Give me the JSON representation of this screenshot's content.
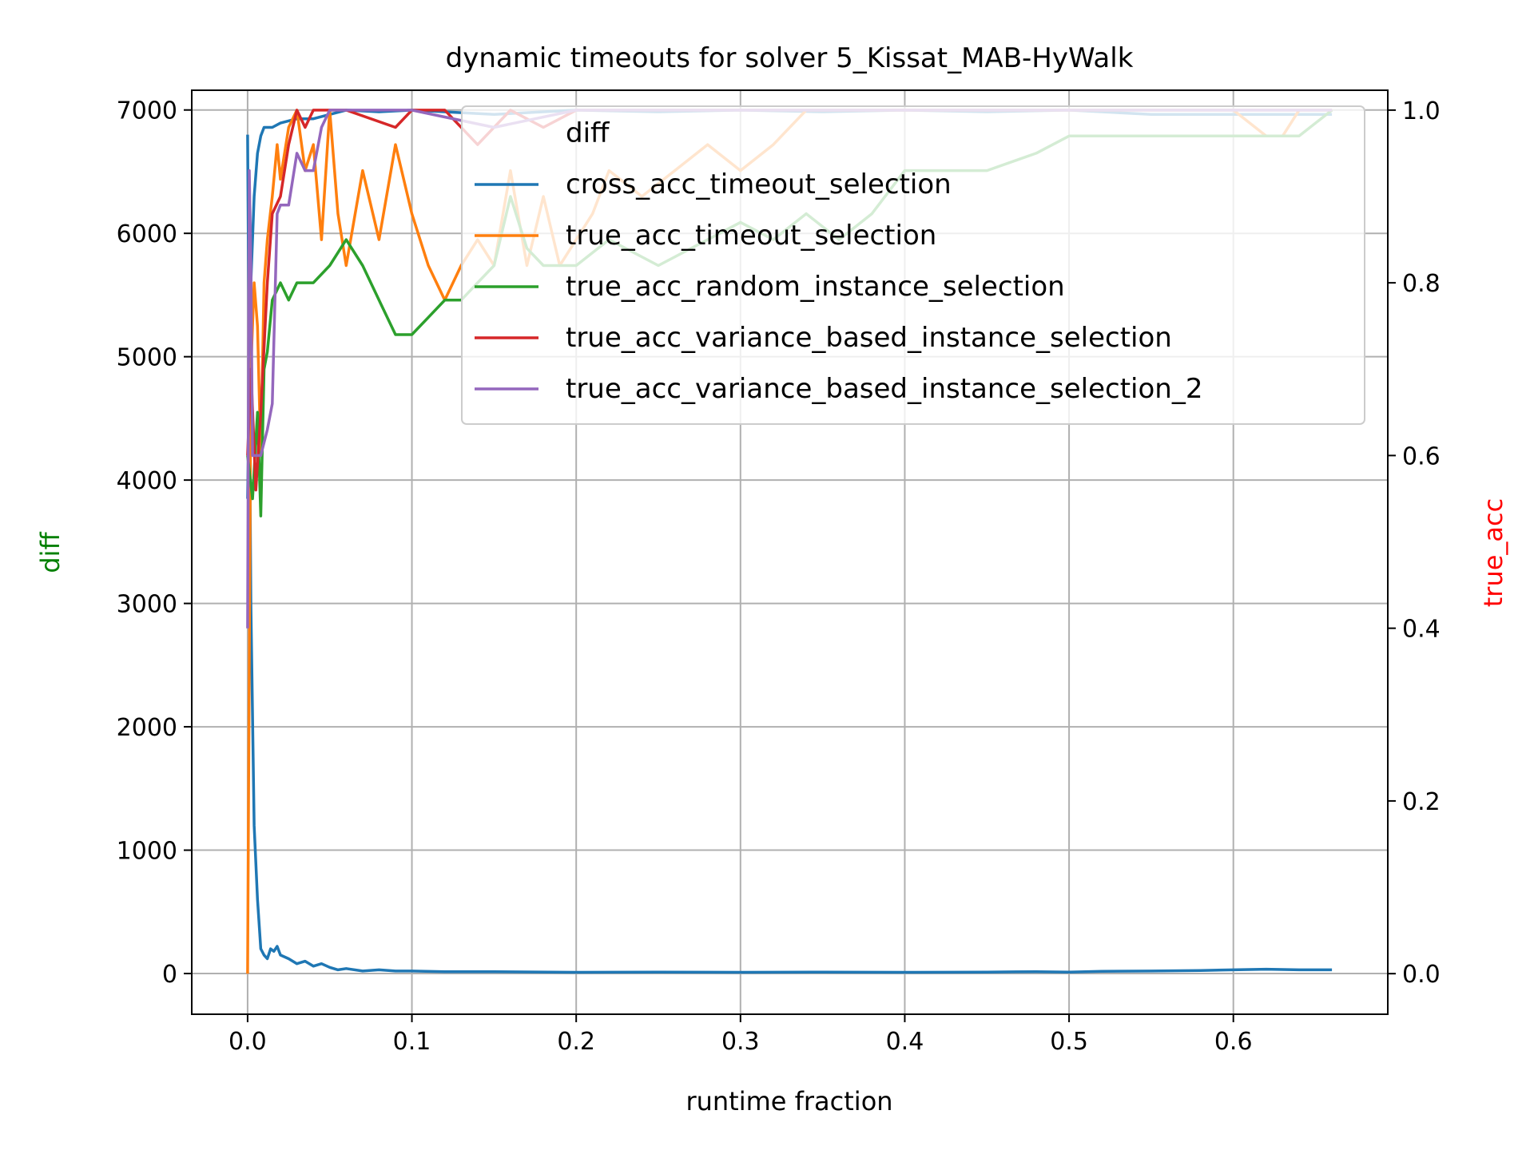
{
  "chart_data": {
    "type": "line",
    "title": "dynamic timeouts for solver 5_Kissat_MAB-HyWalk",
    "xlabel": "runtime fraction",
    "ylabel_left": "diff",
    "ylabel_right": "true_acc",
    "xlim": [
      -0.034,
      0.694
    ],
    "ylim_left": [
      -330,
      7160
    ],
    "ylim_right": [
      -0.047,
      1.023
    ],
    "x_ticks": [
      0.0,
      0.1,
      0.2,
      0.3,
      0.4,
      0.5,
      0.6
    ],
    "x_tick_labels": [
      "0.0",
      "0.1",
      "0.2",
      "0.3",
      "0.4",
      "0.5",
      "0.6"
    ],
    "y_left_ticks": [
      0,
      1000,
      2000,
      3000,
      4000,
      5000,
      6000,
      7000
    ],
    "y_left_tick_labels": [
      "0",
      "1000",
      "2000",
      "3000",
      "4000",
      "5000",
      "6000",
      "7000"
    ],
    "y_right_ticks": [
      0.0,
      0.2,
      0.4,
      0.6,
      0.8,
      1.0
    ],
    "y_right_tick_labels": [
      "0.0",
      "0.2",
      "0.4",
      "0.6",
      "0.8",
      "1.0"
    ],
    "grid": true,
    "legend_placement": "top-right",
    "legend_entries": [
      {
        "label": "diff",
        "color": "#2ca02c",
        "hidden_line": true
      },
      {
        "label": "cross_acc_timeout_selection",
        "color": "#1f77b4"
      },
      {
        "label": "true_acc_timeout_selection",
        "color": "#ff7f0e"
      },
      {
        "label": "true_acc_random_instance_selection",
        "color": "#2ca02c"
      },
      {
        "label": "true_acc_variance_based_instance_selection",
        "color": "#d62728"
      },
      {
        "label": "true_acc_variance_based_instance_selection_2",
        "color": "#9467bd"
      }
    ],
    "colors": {
      "left_label": "#008000",
      "right_label": "#ff0000"
    },
    "series": [
      {
        "name": "diff",
        "axis": "left",
        "color": "#1f77b4",
        "x": [
          0.0,
          0.002,
          0.004,
          0.006,
          0.008,
          0.01,
          0.012,
          0.014,
          0.016,
          0.018,
          0.02,
          0.025,
          0.03,
          0.035,
          0.04,
          0.045,
          0.05,
          0.055,
          0.06,
          0.07,
          0.08,
          0.09,
          0.1,
          0.12,
          0.15,
          0.2,
          0.25,
          0.3,
          0.35,
          0.4,
          0.45,
          0.48,
          0.5,
          0.52,
          0.55,
          0.58,
          0.6,
          0.62,
          0.64,
          0.66
        ],
        "y": [
          6800,
          3000,
          1200,
          600,
          200,
          150,
          120,
          200,
          180,
          220,
          150,
          120,
          80,
          100,
          60,
          80,
          50,
          30,
          40,
          20,
          30,
          20,
          20,
          15,
          15,
          10,
          12,
          10,
          12,
          10,
          12,
          15,
          12,
          18,
          20,
          25,
          30,
          35,
          30,
          30
        ]
      },
      {
        "name": "cross_acc_timeout_selection",
        "axis": "right",
        "color": "#1f77b4",
        "x": [
          0.0,
          0.002,
          0.004,
          0.006,
          0.008,
          0.01,
          0.015,
          0.02,
          0.03,
          0.04,
          0.05,
          0.06,
          0.08,
          0.1,
          0.15,
          0.2,
          0.25,
          0.3,
          0.35,
          0.4,
          0.45,
          0.5,
          0.55,
          0.6,
          0.62,
          0.64,
          0.66
        ],
        "y": [
          0.55,
          0.8,
          0.9,
          0.95,
          0.97,
          0.98,
          0.98,
          0.985,
          0.99,
          0.99,
          0.995,
          1.0,
          0.998,
          1.0,
          0.995,
          1.0,
          0.998,
          1.0,
          0.998,
          1.0,
          0.998,
          1.0,
          0.995,
          0.995,
          0.995,
          0.995,
          0.995
        ]
      },
      {
        "name": "true_acc_timeout_selection",
        "axis": "right",
        "color": "#ff7f0e",
        "x": [
          0.0,
          0.002,
          0.004,
          0.006,
          0.008,
          0.01,
          0.012,
          0.015,
          0.018,
          0.02,
          0.025,
          0.03,
          0.035,
          0.04,
          0.045,
          0.05,
          0.055,
          0.06,
          0.07,
          0.08,
          0.09,
          0.1,
          0.11,
          0.12,
          0.13,
          0.14,
          0.15,
          0.16,
          0.17,
          0.18,
          0.19,
          0.2,
          0.21,
          0.22,
          0.24,
          0.26,
          0.28,
          0.3,
          0.32,
          0.34,
          0.36,
          0.4,
          0.5,
          0.6,
          0.62,
          0.63,
          0.64,
          0.66
        ],
        "y": [
          0.0,
          0.7,
          0.8,
          0.75,
          0.6,
          0.8,
          0.85,
          0.9,
          0.96,
          0.92,
          0.98,
          1.0,
          0.93,
          0.96,
          0.85,
          1.0,
          0.88,
          0.82,
          0.93,
          0.85,
          0.96,
          0.88,
          0.82,
          0.78,
          0.82,
          0.85,
          0.82,
          0.93,
          0.82,
          0.9,
          0.82,
          0.85,
          0.88,
          0.93,
          0.9,
          0.93,
          0.96,
          0.93,
          0.96,
          1.0,
          1.0,
          1.0,
          1.0,
          1.0,
          0.97,
          0.97,
          1.0,
          1.0
        ]
      },
      {
        "name": "true_acc_random_instance_selection",
        "axis": "right",
        "color": "#2ca02c",
        "x": [
          0.0,
          0.003,
          0.006,
          0.008,
          0.01,
          0.012,
          0.015,
          0.02,
          0.025,
          0.03,
          0.04,
          0.05,
          0.06,
          0.07,
          0.08,
          0.09,
          0.1,
          0.11,
          0.12,
          0.13,
          0.14,
          0.15,
          0.16,
          0.17,
          0.18,
          0.2,
          0.22,
          0.25,
          0.28,
          0.3,
          0.32,
          0.34,
          0.36,
          0.38,
          0.4,
          0.45,
          0.48,
          0.5,
          0.55,
          0.6,
          0.62,
          0.64,
          0.66
        ],
        "y": [
          0.6,
          0.55,
          0.65,
          0.53,
          0.7,
          0.72,
          0.78,
          0.8,
          0.78,
          0.8,
          0.8,
          0.82,
          0.85,
          0.82,
          0.78,
          0.74,
          0.74,
          0.76,
          0.78,
          0.78,
          0.8,
          0.82,
          0.9,
          0.84,
          0.82,
          0.82,
          0.85,
          0.82,
          0.85,
          0.87,
          0.85,
          0.88,
          0.85,
          0.88,
          0.93,
          0.93,
          0.95,
          0.97,
          0.97,
          0.97,
          0.97,
          0.97,
          1.0
        ]
      },
      {
        "name": "true_acc_variance_based_instance_selection",
        "axis": "right",
        "color": "#d62728",
        "x": [
          0.0,
          0.002,
          0.005,
          0.008,
          0.012,
          0.015,
          0.02,
          0.025,
          0.03,
          0.035,
          0.04,
          0.06,
          0.09,
          0.1,
          0.12,
          0.14,
          0.16,
          0.18,
          0.2,
          0.3,
          0.4,
          0.5,
          0.6,
          0.66
        ],
        "y": [
          0.6,
          0.7,
          0.56,
          0.65,
          0.8,
          0.88,
          0.9,
          0.96,
          1.0,
          0.98,
          1.0,
          1.0,
          0.98,
          1.0,
          1.0,
          0.96,
          1.0,
          0.98,
          1.0,
          1.0,
          1.0,
          1.0,
          1.0,
          1.0
        ]
      },
      {
        "name": "true_acc_variance_based_instance_selection_2",
        "axis": "right",
        "color": "#9467bd",
        "x": [
          0.0,
          0.001,
          0.002,
          0.003,
          0.005,
          0.008,
          0.012,
          0.015,
          0.018,
          0.02,
          0.025,
          0.03,
          0.035,
          0.04,
          0.045,
          0.05,
          0.06,
          0.1,
          0.15,
          0.2,
          0.25,
          0.3,
          0.4,
          0.5,
          0.6,
          0.66
        ],
        "y": [
          0.4,
          0.93,
          0.82,
          0.6,
          0.6,
          0.6,
          0.63,
          0.66,
          0.88,
          0.89,
          0.89,
          0.95,
          0.93,
          0.93,
          0.98,
          1.0,
          1.0,
          1.0,
          0.98,
          1.0,
          1.0,
          1.0,
          1.0,
          1.0,
          1.0,
          1.0
        ]
      }
    ]
  }
}
